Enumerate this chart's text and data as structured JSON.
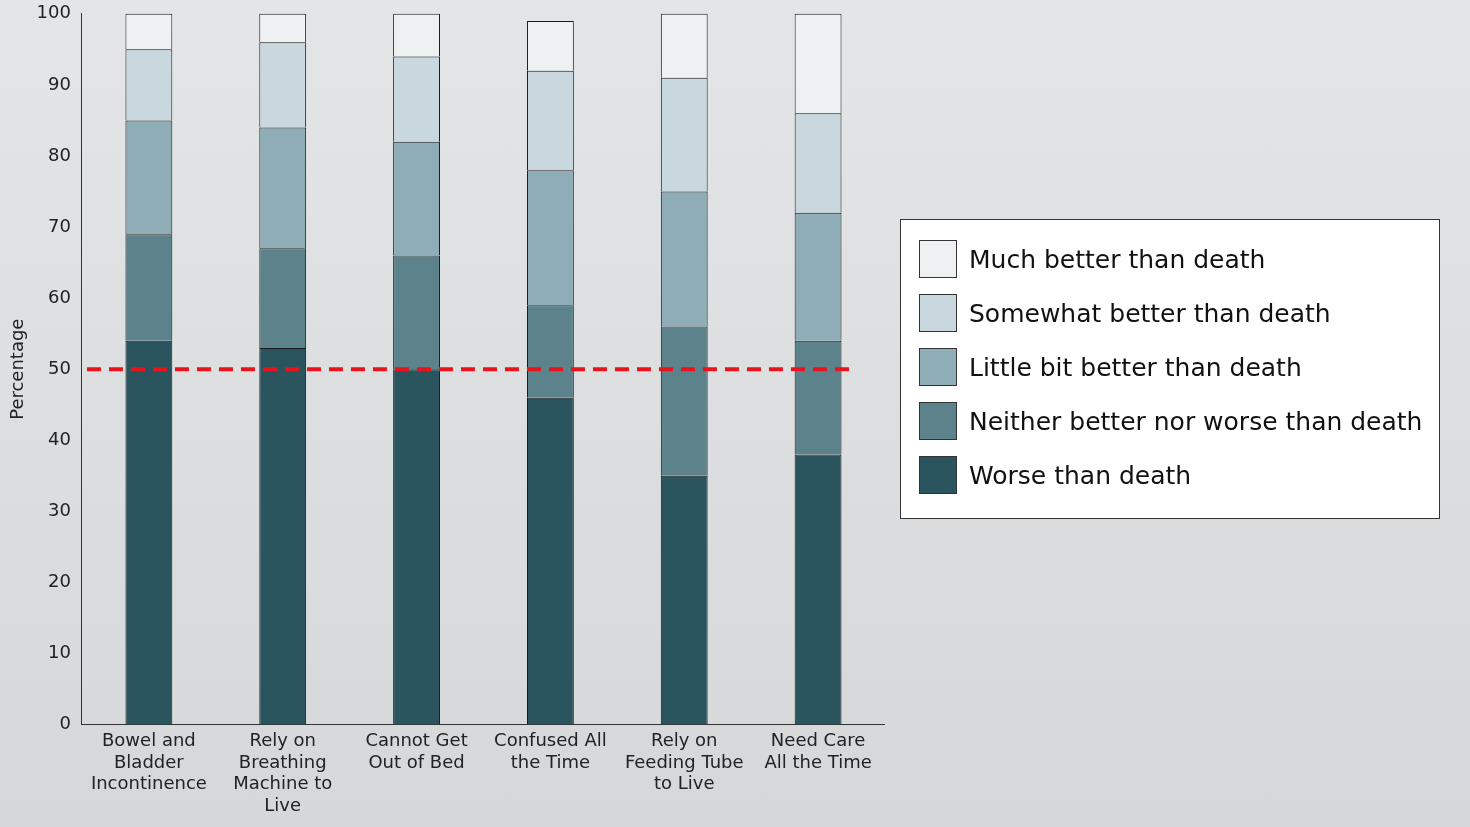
{
  "chart_data": {
    "type": "bar",
    "stacked": true,
    "ylabel": "Percentage",
    "categories": [
      "Bowel and Bladder Incontinence",
      "Rely on Breathing Machine to Live",
      "Cannot Get Out of Bed",
      "Confused All the Time",
      "Rely on Feeding Tube to Live",
      "Need Care All the Time"
    ],
    "series": [
      {
        "name": "Worse than death",
        "color": "#2a555e",
        "values": [
          54,
          53,
          50,
          46,
          35,
          38
        ]
      },
      {
        "name": "Neither better nor worse than death",
        "color": "#5c838c",
        "values": [
          15,
          14,
          16,
          13,
          21,
          16
        ]
      },
      {
        "name": "Little bit better than death",
        "color": "#8fadb6",
        "values": [
          16,
          17,
          16,
          19,
          19,
          18
        ]
      },
      {
        "name": "Somewhat better than death",
        "color": "#c9d8de",
        "values": [
          10,
          12,
          12,
          14,
          16,
          14
        ]
      },
      {
        "name": "Much better than death",
        "color": "#eef1f2",
        "values": [
          5,
          4,
          6,
          7,
          9,
          14
        ]
      }
    ],
    "ylim": [
      0,
      100
    ],
    "yticks": [
      0,
      10,
      20,
      30,
      40,
      50,
      60,
      70,
      80,
      90,
      100
    ],
    "ref_lines": [
      {
        "axis": "y",
        "value": 50,
        "color": "#e8141b",
        "line_style": "dashed"
      }
    ],
    "grid": false,
    "legend": "right"
  }
}
